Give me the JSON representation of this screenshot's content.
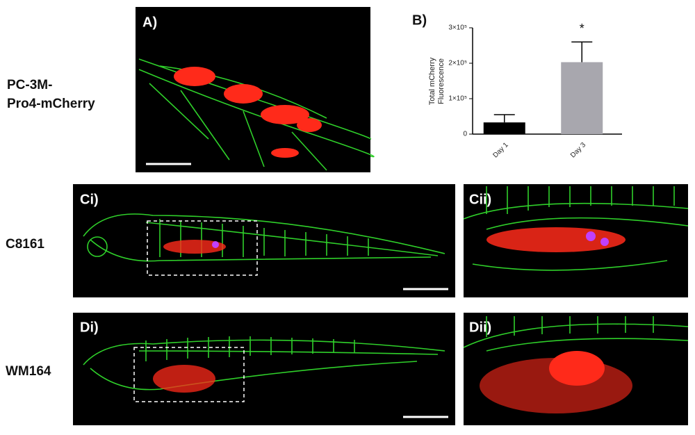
{
  "row_labels": {
    "pc3m": [
      "PC-3M-",
      "Pro4-mCherry"
    ],
    "c8161": "C8161",
    "wm164": "WM164"
  },
  "panels": {
    "a": "A)",
    "b": "B)",
    "ci": "Ci)",
    "cii": "Cii)",
    "di": "Di)",
    "dii": "Dii)"
  },
  "chart_data": {
    "type": "bar",
    "title": "B)",
    "y_label": [
      "Total mCherry",
      "Fluorescence"
    ],
    "categories": [
      "Day 1",
      "Day 3"
    ],
    "values": [
      33000,
      203000
    ],
    "errors": [
      22000,
      57000
    ],
    "colors": [
      "#000000",
      "#a8a7ae"
    ],
    "annotations": [
      {
        "category": 1,
        "text": "*"
      }
    ],
    "ylim": [
      0,
      300000
    ],
    "yticks": [
      0,
      {
        "value": 100000,
        "label": "1×10⁵"
      },
      {
        "value": 200000,
        "label": "2×10⁵"
      },
      {
        "value": 300000,
        "label": "3×10⁵"
      }
    ]
  }
}
